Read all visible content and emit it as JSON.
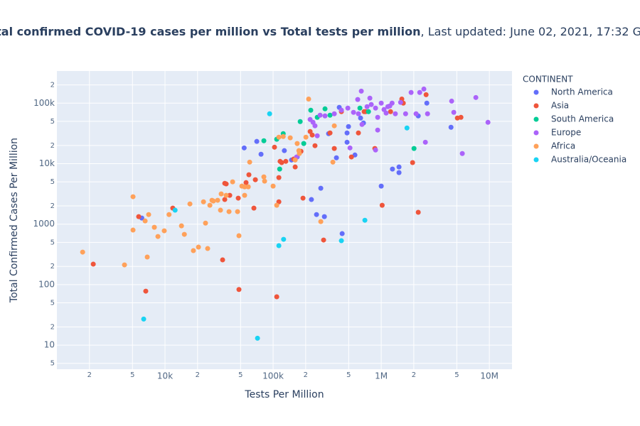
{
  "chart_data": {
    "type": "scatter",
    "title": "Total confirmed COVID-19 cases per million vs Total tests per million",
    "subtitle": ", Last updated: June 02, 2021, 17:32 GMT",
    "x_label": "Tests Per Million",
    "y_label": "Total Confirmed Cases Per Million",
    "legend_title": "CONTINENT",
    "legend_position": "right",
    "log_x": true,
    "log_y": true,
    "grid": true,
    "xlim": [
      1000,
      16200000
    ],
    "ylim": [
      4,
      340000
    ],
    "xticks": [
      {
        "value": 2000,
        "label": "2"
      },
      {
        "value": 5000,
        "label": "5"
      },
      {
        "value": 10000,
        "label": "10k"
      },
      {
        "value": 20000,
        "label": "2"
      },
      {
        "value": 50000,
        "label": "5"
      },
      {
        "value": 100000,
        "label": "100k"
      },
      {
        "value": 200000,
        "label": "2"
      },
      {
        "value": 500000,
        "label": "5"
      },
      {
        "value": 1000000,
        "label": "1M"
      },
      {
        "value": 2000000,
        "label": "2"
      },
      {
        "value": 5000000,
        "label": "5"
      },
      {
        "value": 10000000,
        "label": "10M"
      }
    ],
    "yticks": [
      5,
      10,
      {
        "value": 20,
        "label": "2"
      },
      {
        "value": 50,
        "label": "5"
      },
      100,
      {
        "value": 200,
        "label": "2"
      },
      {
        "value": 500,
        "label": "5"
      },
      1000,
      {
        "value": 2000,
        "label": "2"
      },
      {
        "value": 5000,
        "label": "5"
      },
      {
        "value": 10000,
        "label": "10k"
      },
      {
        "value": 20000,
        "label": "2"
      },
      {
        "value": 50000,
        "label": "5"
      },
      {
        "value": 100000,
        "label": "100k"
      },
      {
        "value": 200000,
        "label": "2"
      }
    ],
    "series": [
      {
        "name": "North America",
        "color": "#636efa",
        "x": [
          6100,
          54000,
          77300,
          70600,
          127000,
          148000,
          167000,
          226000,
          252000,
          276000,
          298000,
          326000,
          385000,
          409000,
          435000,
          483000,
          498000,
          571000,
          644000,
          685000,
          1000000,
          1270000,
          1460000,
          1460000,
          2200000,
          2640000,
          4420000,
          483000
        ],
        "values": [
          1260,
          18200,
          14300,
          23300,
          16400,
          11500,
          12900,
          2550,
          1440,
          3920,
          1330,
          31300,
          12500,
          85100,
          697,
          32200,
          41000,
          13900,
          56700,
          47000,
          4250,
          8130,
          7100,
          8810,
          61500,
          100000,
          39900,
          22600
        ]
      },
      {
        "name": "Asia",
        "color": "#ef553b",
        "x": [
          2170,
          5710,
          6640,
          11800,
          35700,
          35700,
          34100,
          36800,
          39700,
          48300,
          47600,
          56200,
          59700,
          66400,
          68500,
          108000,
          113000,
          113000,
          116000,
          103000,
          120000,
          131000,
          155000,
          160000,
          181000,
          189000,
          220000,
          230000,
          244000,
          293000,
          336000,
          368000,
          530000,
          615000,
          717000,
          873000,
          1020000,
          1220000,
          1550000,
          1600000,
          1950000,
          2200000,
          2600000,
          5060000,
          5460000,
          428000,
          695000
        ],
        "values": [
          218,
          1330,
          78,
          1840,
          2550,
          4730,
          257,
          4620,
          2990,
          83,
          2690,
          4860,
          6550,
          1840,
          5420,
          63,
          2340,
          5880,
          10900,
          18700,
          10400,
          10900,
          11900,
          8810,
          16000,
          2690,
          34000,
          29700,
          19800,
          546,
          32200,
          17800,
          12900,
          32200,
          72300,
          17800,
          2050,
          72300,
          117000,
          100000,
          10400,
          1570,
          138000,
          56700,
          58300,
          72300,
          72300
        ]
      },
      {
        "name": "South America",
        "color": "#00cc96",
        "x": [
          82100,
          108000,
          115000,
          124000,
          178000,
          192000,
          223000,
          256000,
          302000,
          336000,
          635000,
          762000,
          2010000
        ],
        "values": [
          23900,
          25300,
          8130,
          31300,
          49600,
          21500,
          76400,
          58300,
          80500,
          63200,
          82800,
          72300,
          17800
        ]
      },
      {
        "name": "Europe",
        "color": "#ab63fa",
        "x": [
          165000,
          220000,
          234000,
          244000,
          256000,
          272000,
          302000,
          368000,
          428000,
          491000,
          514000,
          554000,
          606000,
          615000,
          654000,
          664000,
          739000,
          809000,
          886000,
          927000,
          1000000,
          1060000,
          1110000,
          1200000,
          1260000,
          1350000,
          1510000,
          1680000,
          1890000,
          2100000,
          2270000,
          2480000,
          2560000,
          2680000,
          4480000,
          4690000,
          5620000,
          7500000,
          9710000,
          927000,
          886000,
          1150000,
          785000
        ],
        "values": [
          12900,
          53700,
          48200,
          42200,
          28900,
          63200,
          61500,
          66700,
          76400,
          82800,
          18200,
          70400,
          115000,
          66700,
          158000,
          44500,
          87300,
          94800,
          16800,
          35900,
          100000,
          78400,
          68500,
          89800,
          100000,
          66700,
          103000,
          66700,
          150000,
          66700,
          150000,
          171000,
          22600,
          66700,
          108000,
          70400,
          14700,
          124000,
          48200,
          58300,
          82800,
          87300,
          121000
        ]
      },
      {
        "name": "Africa",
        "color": "#ffa15a",
        "x": [
          1730,
          4220,
          5060,
          5060,
          6550,
          6850,
          7060,
          7970,
          8600,
          9840,
          10900,
          14200,
          15100,
          17000,
          18300,
          20400,
          22700,
          23700,
          24800,
          26000,
          27200,
          28000,
          30700,
          32600,
          33100,
          36800,
          39100,
          42200,
          46900,
          48300,
          54500,
          54500,
          58900,
          60700,
          82100,
          83400,
          100000,
          108000,
          113000,
          124000,
          144000,
          160000,
          167000,
          173000,
          175000,
          213000,
          276000,
          357000,
          368000,
          201000,
          51400
        ],
        "values": [
          345,
          212,
          2840,
          798,
          1130,
          286,
          1440,
          887,
          625,
          776,
          1440,
          937,
          678,
          2160,
          365,
          417,
          2340,
          1040,
          395,
          2050,
          2480,
          2410,
          2480,
          1700,
          3160,
          2990,
          1610,
          5000,
          1610,
          643,
          4140,
          2990,
          4140,
          10600,
          6040,
          5130,
          4250,
          2050,
          27400,
          28100,
          26700,
          11500,
          21500,
          16400,
          14700,
          117000,
          1100,
          10600,
          42200,
          27400,
          4250
        ]
      },
      {
        "name": "Australia/Oceania",
        "color": "#19d3f3",
        "x": [
          6350,
          12400,
          71700,
          92800,
          113000,
          125000,
          428000,
          706000,
          1730000
        ],
        "values": [
          27,
          1700,
          13,
          66700,
          441,
          561,
          532,
          1160,
          38900
        ]
      }
    ]
  }
}
